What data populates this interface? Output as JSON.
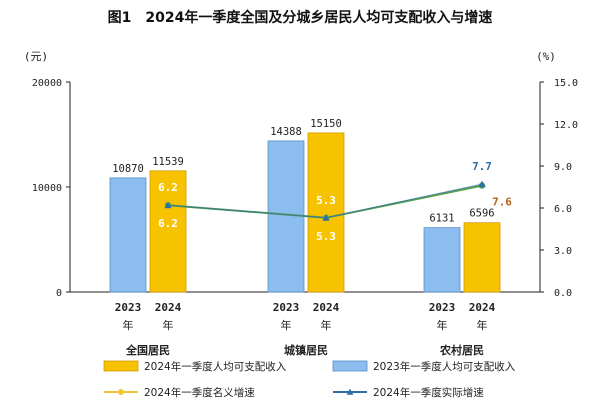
{
  "chart_data": {
    "type": "bar",
    "title": "图1　2024年一季度全国及分城乡居民人均可支配收入与增速",
    "y_left_unit": "(元)",
    "y_right_unit": "(%)",
    "y_left_lim": [
      0,
      20000
    ],
    "y_left_ticks": [
      0,
      10000,
      20000
    ],
    "y_right_lim": [
      0,
      15
    ],
    "y_right_ticks": [
      "0.0",
      "3.0",
      "6.0",
      "9.0",
      "12.0",
      "15.0"
    ],
    "groups": [
      "全国居民",
      "城镇居民",
      "农村居民"
    ],
    "year_labels": {
      "y2023": "2023",
      "y2024": "2024",
      "suffix": "年"
    },
    "series": [
      {
        "name": "2023年一季度人均可支配收入",
        "kind": "bar",
        "color": "#8cbdef",
        "values": [
          10870,
          14388,
          6131
        ]
      },
      {
        "name": "2024年一季度人均可支配收入",
        "kind": "bar",
        "color": "#f7c300",
        "values": [
          11539,
          15150,
          6596
        ]
      },
      {
        "name": "2024年一季度名义增速",
        "kind": "line",
        "axis": "right",
        "color": "#f3c43b",
        "values": [
          6.2,
          5.3,
          7.6
        ],
        "labels": [
          "6.2",
          "5.3",
          "7.6"
        ]
      },
      {
        "name": "2024年一季度实际增速",
        "kind": "line",
        "axis": "right",
        "color": "#2e6fa8",
        "values": [
          6.2,
          5.3,
          7.7
        ],
        "labels": [
          "6.2",
          "5.3",
          "7.7"
        ]
      }
    ],
    "colors": {
      "nominal_label": "#ffffff",
      "real_label_on_bar": "#ffffff",
      "rural_real_label": "#2e6fa8",
      "rural_nominal_label": "#b5651d",
      "inline_label_on_bar": "#ffffff",
      "outline_2024": "#d49a00",
      "outline_2023": "#5a8fc6",
      "line_green": "#5aa24a"
    },
    "legend": [
      {
        "label": "2024年一季度人均可支配收入",
        "swatch": "bar",
        "color": "#f7c300"
      },
      {
        "label": "2023年一季度人均可支配收入",
        "swatch": "bar",
        "color": "#8cbdef"
      },
      {
        "label": "2024年一季度名义增速",
        "swatch": "line",
        "color": "#f3c43b"
      },
      {
        "label": "2024年一季度实际增速",
        "swatch": "line",
        "color": "#2e6fa8"
      }
    ]
  }
}
